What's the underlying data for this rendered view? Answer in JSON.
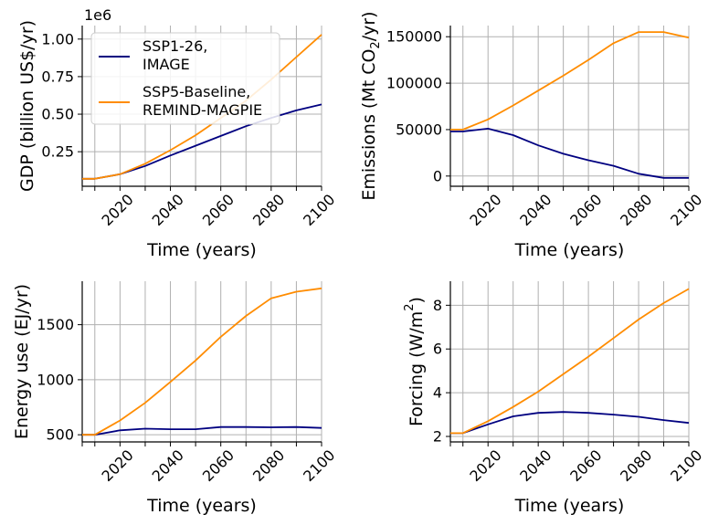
{
  "colors": {
    "ssp1": "#000080",
    "ssp5": "#ff8c00",
    "grid": "#b0b0b0",
    "axis": "#000000"
  },
  "legend": {
    "entries": [
      {
        "line1": "SSP1-26,",
        "line2": "IMAGE"
      },
      {
        "line1": "SSP5-Baseline,",
        "line2": "REMIND-MAGPIE"
      }
    ],
    "placement": "top-left"
  },
  "chart_data": [
    {
      "type": "line",
      "xlabel": "Time (years)",
      "ylabel": "GDP (billion US$/yr)",
      "offset_text": "1e6",
      "x": [
        2005,
        2010,
        2020,
        2030,
        2040,
        2050,
        2060,
        2070,
        2080,
        2090,
        2100
      ],
      "xticks": [
        2020,
        2040,
        2060,
        2080,
        2100
      ],
      "yticks": [
        0.25,
        0.5,
        0.75,
        1.0
      ],
      "ytick_labels": [
        "0.25",
        "0.50",
        "0.75",
        "1.00"
      ],
      "xlim": [
        2005,
        2100
      ],
      "ylim": [
        0.02,
        1.09
      ],
      "grid": true,
      "series": [
        {
          "name": "SSP1-26, IMAGE",
          "values": [
            0.07,
            0.07,
            0.1,
            0.155,
            0.225,
            0.29,
            0.355,
            0.42,
            0.475,
            0.525,
            0.565
          ]
        },
        {
          "name": "SSP5-Baseline, REMIND-MAGPIE",
          "values": [
            0.07,
            0.07,
            0.1,
            0.17,
            0.26,
            0.36,
            0.475,
            0.59,
            0.73,
            0.88,
            1.03
          ]
        }
      ]
    },
    {
      "type": "line",
      "xlabel": "Time (years)",
      "ylabel_main": "Emissions (Mt CO",
      "ylabel_sub": "2",
      "ylabel_end": "/yr)",
      "x": [
        2005,
        2010,
        2020,
        2030,
        2040,
        2050,
        2060,
        2070,
        2080,
        2090,
        2100
      ],
      "xticks": [
        2020,
        2040,
        2060,
        2080,
        2100
      ],
      "yticks": [
        0,
        50000,
        100000,
        150000
      ],
      "ytick_labels": [
        "0",
        "50000",
        "100000",
        "150000"
      ],
      "xlim": [
        2005,
        2100
      ],
      "ylim": [
        -11000,
        162000
      ],
      "grid": true,
      "series": [
        {
          "name": "SSP1-26, IMAGE",
          "values": [
            48000,
            48000,
            51000,
            44000,
            33000,
            24000,
            17000,
            11000,
            2500,
            -2000,
            -2000
          ]
        },
        {
          "name": "SSP5-Baseline, REMIND-MAGPIE",
          "values": [
            50000,
            50000,
            61000,
            76000,
            92000,
            108000,
            125000,
            143000,
            155000,
            155000,
            149000
          ]
        }
      ]
    },
    {
      "type": "line",
      "xlabel": "Time (years)",
      "ylabel": "Energy use (EJ/yr)",
      "x": [
        2005,
        2010,
        2020,
        2030,
        2040,
        2050,
        2060,
        2070,
        2080,
        2090,
        2100
      ],
      "xticks": [
        2020,
        2040,
        2060,
        2080,
        2100
      ],
      "yticks": [
        500,
        1000,
        1500
      ],
      "ytick_labels": [
        "500",
        "1000",
        "1500"
      ],
      "xlim": [
        2005,
        2100
      ],
      "ylim": [
        435,
        1895
      ],
      "grid": true,
      "series": [
        {
          "name": "SSP1-26, IMAGE",
          "values": [
            500,
            500,
            540,
            555,
            550,
            550,
            570,
            570,
            568,
            570,
            562
          ]
        },
        {
          "name": "SSP5-Baseline, REMIND-MAGPIE",
          "values": [
            500,
            500,
            630,
            790,
            980,
            1175,
            1390,
            1580,
            1740,
            1800,
            1830
          ]
        }
      ]
    },
    {
      "type": "line",
      "xlabel": "Time (years)",
      "ylabel_main": "Forcing (W/m",
      "ylabel_sup": "2",
      "ylabel_end": ")",
      "x": [
        2005,
        2010,
        2020,
        2030,
        2040,
        2050,
        2060,
        2070,
        2080,
        2090,
        2100
      ],
      "xticks": [
        2020,
        2040,
        2060,
        2080,
        2100
      ],
      "yticks": [
        2,
        4,
        6,
        8
      ],
      "ytick_labels": [
        "2",
        "4",
        "6",
        "8"
      ],
      "xlim": [
        2005,
        2100
      ],
      "ylim": [
        1.75,
        9.1
      ],
      "grid": true,
      "series": [
        {
          "name": "SSP1-26, IMAGE",
          "values": [
            2.15,
            2.15,
            2.55,
            2.92,
            3.08,
            3.12,
            3.08,
            3.0,
            2.9,
            2.75,
            2.62
          ]
        },
        {
          "name": "SSP5-Baseline, REMIND-MAGPIE",
          "values": [
            2.15,
            2.15,
            2.7,
            3.35,
            4.05,
            4.85,
            5.65,
            6.5,
            7.35,
            8.1,
            8.75
          ]
        }
      ]
    }
  ]
}
